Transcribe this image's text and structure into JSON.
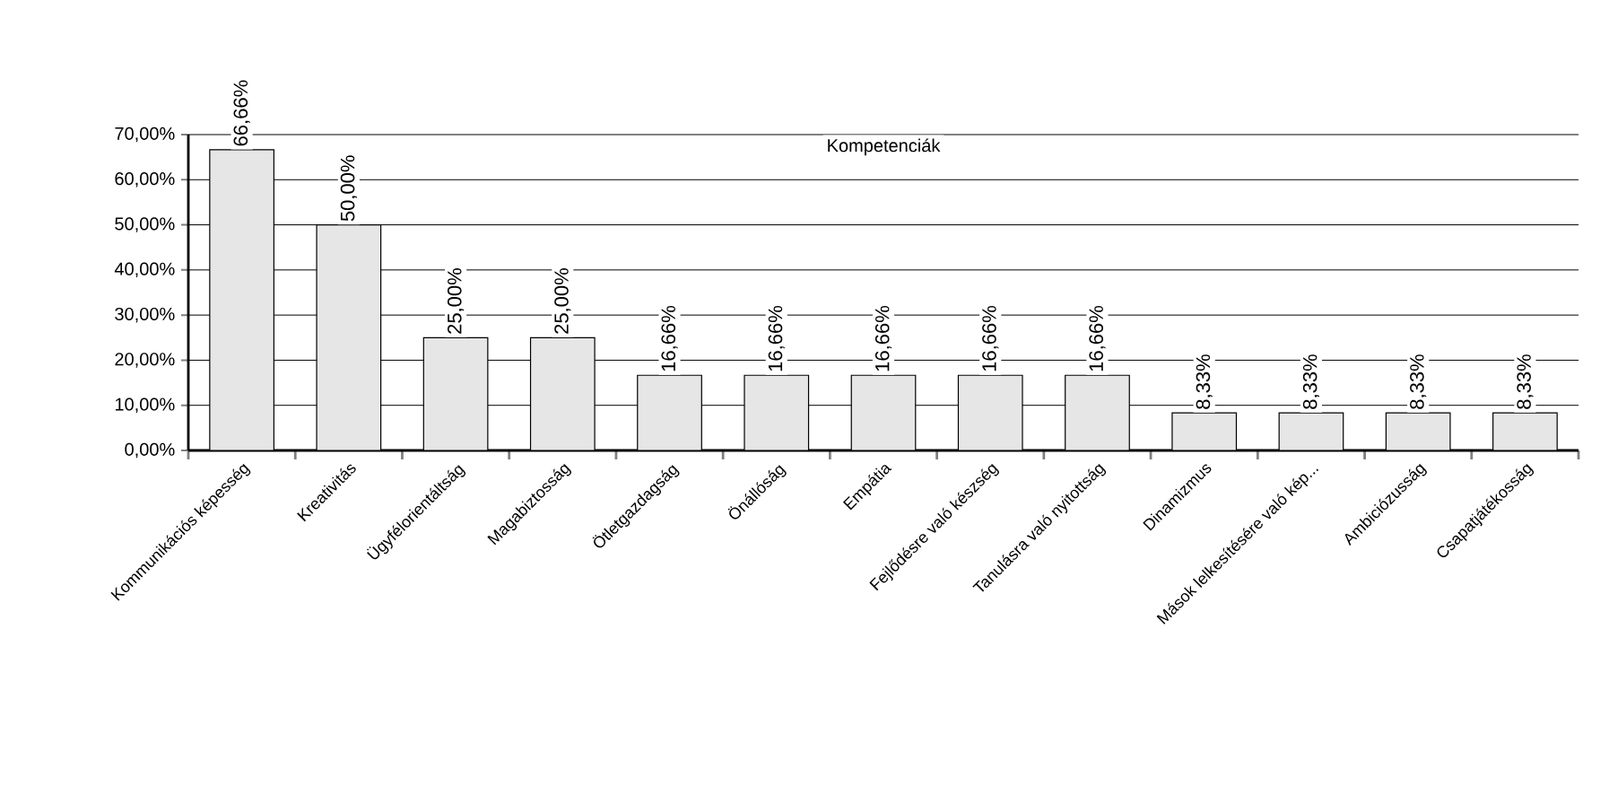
{
  "chart_data": {
    "type": "bar",
    "title": "Kompetenciák",
    "categories": [
      "Kommunikációs képesség",
      "Kreativitás",
      "Ügyfélorientáltság",
      "Magabiztosság",
      "Ötletgazdagság",
      "Önállóság",
      "Empátia",
      "Fejlődésre való készség",
      "Tanulásra való nyitottság",
      "Dinamizmus",
      "Mások lelkesítésére való kép...",
      "Ambiciózusság",
      "Csapatjátékosság"
    ],
    "values": [
      66.66,
      50.0,
      25.0,
      25.0,
      16.66,
      16.66,
      16.66,
      16.66,
      16.66,
      8.33,
      8.33,
      8.33,
      8.33
    ],
    "value_labels": [
      "66,66%",
      "50,00%",
      "25,00%",
      "25,00%",
      "16,66%",
      "16,66%",
      "16,66%",
      "16,66%",
      "16,66%",
      "8,33%",
      "8,33%",
      "8,33%",
      "8,33%"
    ],
    "color": "#e6e6e6",
    "ylim": [
      0,
      70
    ],
    "yticks": [
      {
        "value": 0,
        "label": "0,00%"
      },
      {
        "value": 10,
        "label": "10,00%"
      },
      {
        "value": 20,
        "label": "20,00%"
      },
      {
        "value": 30,
        "label": "30,00%"
      },
      {
        "value": 40,
        "label": "40,00%"
      },
      {
        "value": 50,
        "label": "50,00%"
      },
      {
        "value": 60,
        "label": "60,00%"
      },
      {
        "value": 70,
        "label": "70,00%"
      }
    ],
    "grid": "y"
  }
}
